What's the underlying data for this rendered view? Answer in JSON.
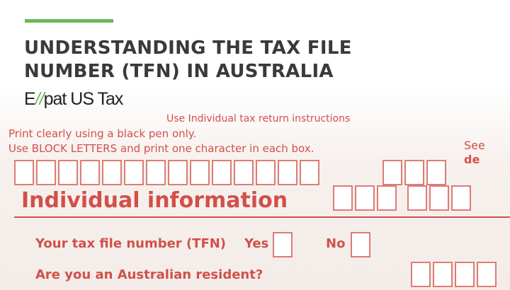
{
  "header": {
    "title_line1": "UNDERSTANDING THE TAX FILE",
    "title_line2": "NUMBER (TFN) IN AUSTRALIA",
    "accent_color": "#6ab956"
  },
  "logo": {
    "text": "Expat US Tax"
  },
  "form": {
    "line1": "Use Individual tax return instructions",
    "line2": "Print clearly using a black pen only.",
    "line3": "Use BLOCK LETTERS and print one character in each box.",
    "section_title": "Individual information",
    "tfn_label": "Your tax file number (TFN)",
    "resident_label": "Are you an Australian resident?",
    "yes_label": "Yes",
    "no_label": "No",
    "see_label": "See",
    "de_label": "de"
  }
}
